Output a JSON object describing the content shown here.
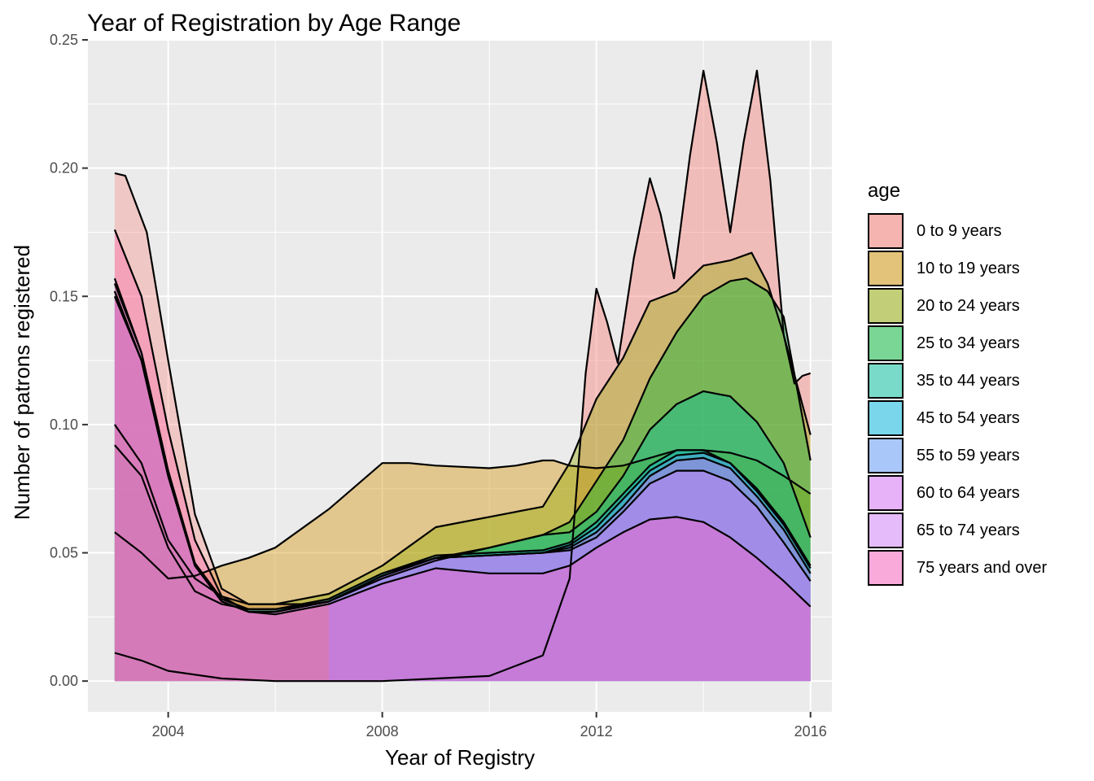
{
  "chart_data": {
    "type": "area",
    "title": "Year of Registration by Age Range",
    "xlabel": "Year of Registry",
    "ylabel": "Number of patrons registered",
    "xlim": [
      2002.5,
      2016.4
    ],
    "ylim": [
      -0.012,
      0.25
    ],
    "x_ticks": [
      2004,
      2008,
      2012,
      2016
    ],
    "x_tick_labels": [
      "2004",
      "2008",
      "2012",
      "2016"
    ],
    "y_ticks": [
      0.0,
      0.05,
      0.1,
      0.15,
      0.2,
      0.25
    ],
    "y_tick_labels": [
      "0.00",
      "0.05",
      "0.10",
      "0.15",
      "0.20",
      "0.25"
    ],
    "grid": true,
    "legend_position": "right",
    "legend_title": "age",
    "series": [
      {
        "name": "0 to 9 years",
        "color": "#F8766D",
        "points": [
          [
            2003,
            0.011
          ],
          [
            2003.5,
            0.008
          ],
          [
            2004,
            0.004
          ],
          [
            2005,
            0.001
          ],
          [
            2006,
            0.0
          ],
          [
            2008,
            0.0
          ],
          [
            2010,
            0.002
          ],
          [
            2011,
            0.01
          ],
          [
            2011.5,
            0.04
          ],
          [
            2011.8,
            0.12
          ],
          [
            2012,
            0.153
          ],
          [
            2012.2,
            0.14
          ],
          [
            2012.4,
            0.124
          ],
          [
            2012.7,
            0.165
          ],
          [
            2013,
            0.196
          ],
          [
            2013.2,
            0.182
          ],
          [
            2013.45,
            0.157
          ],
          [
            2013.75,
            0.205
          ],
          [
            2014,
            0.238
          ],
          [
            2014.25,
            0.21
          ],
          [
            2014.5,
            0.175
          ],
          [
            2014.75,
            0.21
          ],
          [
            2015,
            0.238
          ],
          [
            2015.25,
            0.195
          ],
          [
            2015.5,
            0.135
          ],
          [
            2015.7,
            0.116
          ],
          [
            2015.85,
            0.119
          ],
          [
            2016,
            0.12
          ]
        ]
      },
      {
        "name": "10 to 19 years",
        "color": "#D39200",
        "points": [
          [
            2003,
            0.058
          ],
          [
            2003.5,
            0.05
          ],
          [
            2004,
            0.04
          ],
          [
            2004.5,
            0.041
          ],
          [
            2005,
            0.045
          ],
          [
            2005.5,
            0.048
          ],
          [
            2006,
            0.052
          ],
          [
            2007,
            0.067
          ],
          [
            2008,
            0.085
          ],
          [
            2008.5,
            0.085
          ],
          [
            2009,
            0.084
          ],
          [
            2010,
            0.083
          ],
          [
            2010.5,
            0.084
          ],
          [
            2011,
            0.086
          ],
          [
            2011.2,
            0.086
          ],
          [
            2011.5,
            0.084
          ],
          [
            2012,
            0.083
          ],
          [
            2012.5,
            0.084
          ],
          [
            2013,
            0.087
          ],
          [
            2013.5,
            0.09
          ],
          [
            2014,
            0.09
          ],
          [
            2014.5,
            0.089
          ],
          [
            2015,
            0.086
          ],
          [
            2015.5,
            0.08
          ],
          [
            2016,
            0.073
          ]
        ]
      },
      {
        "name": "20 to 24 years",
        "color": "#93AA00",
        "points": [
          [
            2003,
            0.1
          ],
          [
            2003.5,
            0.085
          ],
          [
            2004,
            0.055
          ],
          [
            2004.5,
            0.04
          ],
          [
            2005,
            0.033
          ],
          [
            2005.5,
            0.03
          ],
          [
            2006,
            0.03
          ],
          [
            2007,
            0.034
          ],
          [
            2008,
            0.045
          ],
          [
            2009,
            0.06
          ],
          [
            2010,
            0.064
          ],
          [
            2011,
            0.068
          ],
          [
            2011.5,
            0.085
          ],
          [
            2012,
            0.11
          ],
          [
            2012.5,
            0.126
          ],
          [
            2013,
            0.148
          ],
          [
            2013.5,
            0.152
          ],
          [
            2014,
            0.162
          ],
          [
            2014.5,
            0.164
          ],
          [
            2014.9,
            0.167
          ],
          [
            2015.2,
            0.155
          ],
          [
            2015.5,
            0.135
          ],
          [
            2016,
            0.096
          ]
        ]
      },
      {
        "name": "25 to 34 years",
        "color": "#00BA38",
        "points": [
          [
            2003,
            0.092
          ],
          [
            2003.5,
            0.08
          ],
          [
            2004,
            0.052
          ],
          [
            2004.5,
            0.035
          ],
          [
            2005,
            0.03
          ],
          [
            2005.5,
            0.028
          ],
          [
            2006,
            0.028
          ],
          [
            2007,
            0.031
          ],
          [
            2008,
            0.04
          ],
          [
            2009,
            0.047
          ],
          [
            2010,
            0.052
          ],
          [
            2011,
            0.057
          ],
          [
            2011.5,
            0.062
          ],
          [
            2012,
            0.078
          ],
          [
            2012.5,
            0.094
          ],
          [
            2013,
            0.118
          ],
          [
            2013.5,
            0.136
          ],
          [
            2014,
            0.15
          ],
          [
            2014.5,
            0.156
          ],
          [
            2014.8,
            0.157
          ],
          [
            2015.2,
            0.152
          ],
          [
            2015.5,
            0.142
          ],
          [
            2016,
            0.086
          ]
        ]
      },
      {
        "name": "35 to 44 years",
        "color": "#00C19F",
        "points": [
          [
            2003,
            0.152
          ],
          [
            2003.5,
            0.125
          ],
          [
            2004,
            0.08
          ],
          [
            2004.5,
            0.045
          ],
          [
            2005,
            0.032
          ],
          [
            2005.5,
            0.028
          ],
          [
            2006,
            0.028
          ],
          [
            2007,
            0.032
          ],
          [
            2008,
            0.042
          ],
          [
            2009,
            0.048
          ],
          [
            2010,
            0.052
          ],
          [
            2011,
            0.057
          ],
          [
            2011.5,
            0.058
          ],
          [
            2012,
            0.066
          ],
          [
            2012.5,
            0.08
          ],
          [
            2013,
            0.098
          ],
          [
            2013.5,
            0.108
          ],
          [
            2014,
            0.113
          ],
          [
            2014.5,
            0.111
          ],
          [
            2015,
            0.101
          ],
          [
            2015.5,
            0.085
          ],
          [
            2016,
            0.056
          ]
        ]
      },
      {
        "name": "45 to 54 years",
        "color": "#00B9E3",
        "points": [
          [
            2003,
            0.155
          ],
          [
            2003.5,
            0.128
          ],
          [
            2004,
            0.082
          ],
          [
            2004.5,
            0.046
          ],
          [
            2005,
            0.032
          ],
          [
            2005.5,
            0.028
          ],
          [
            2006,
            0.028
          ],
          [
            2007,
            0.032
          ],
          [
            2008,
            0.042
          ],
          [
            2009,
            0.049
          ],
          [
            2010,
            0.05
          ],
          [
            2011,
            0.051
          ],
          [
            2011.5,
            0.054
          ],
          [
            2012,
            0.062
          ],
          [
            2012.5,
            0.073
          ],
          [
            2013,
            0.084
          ],
          [
            2013.5,
            0.09
          ],
          [
            2014,
            0.09
          ],
          [
            2014.5,
            0.085
          ],
          [
            2015,
            0.075
          ],
          [
            2015.5,
            0.062
          ],
          [
            2016,
            0.045
          ]
        ]
      },
      {
        "name": "55 to 59 years",
        "color": "#619CFF",
        "points": [
          [
            2003,
            0.15
          ],
          [
            2003.5,
            0.125
          ],
          [
            2004,
            0.08
          ],
          [
            2004.5,
            0.045
          ],
          [
            2005,
            0.031
          ],
          [
            2005.5,
            0.027
          ],
          [
            2006,
            0.027
          ],
          [
            2007,
            0.031
          ],
          [
            2008,
            0.041
          ],
          [
            2009,
            0.048
          ],
          [
            2010,
            0.049
          ],
          [
            2011,
            0.05
          ],
          [
            2011.5,
            0.053
          ],
          [
            2012,
            0.06
          ],
          [
            2012.5,
            0.071
          ],
          [
            2013,
            0.082
          ],
          [
            2013.5,
            0.088
          ],
          [
            2014,
            0.089
          ],
          [
            2014.5,
            0.085
          ],
          [
            2015,
            0.074
          ],
          [
            2015.5,
            0.061
          ],
          [
            2016,
            0.044
          ]
        ]
      },
      {
        "name": "60 to 64 years",
        "color": "#DB72FB",
        "points": [
          [
            2003,
            0.152
          ],
          [
            2003.5,
            0.125
          ],
          [
            2004,
            0.08
          ],
          [
            2004.5,
            0.045
          ],
          [
            2005,
            0.031
          ],
          [
            2005.5,
            0.027
          ],
          [
            2006,
            0.027
          ],
          [
            2007,
            0.031
          ],
          [
            2008,
            0.041
          ],
          [
            2009,
            0.048
          ],
          [
            2010,
            0.049
          ],
          [
            2011,
            0.05
          ],
          [
            2011.5,
            0.052
          ],
          [
            2012,
            0.058
          ],
          [
            2012.5,
            0.068
          ],
          [
            2013,
            0.08
          ],
          [
            2013.5,
            0.086
          ],
          [
            2014,
            0.087
          ],
          [
            2014.5,
            0.083
          ],
          [
            2015,
            0.072
          ],
          [
            2015.5,
            0.059
          ],
          [
            2016,
            0.042
          ]
        ]
      },
      {
        "name": "65 to 74 years",
        "color": "#D883FF",
        "points": [
          [
            2003,
            0.157
          ],
          [
            2003.5,
            0.128
          ],
          [
            2004,
            0.082
          ],
          [
            2004.5,
            0.045
          ],
          [
            2005,
            0.031
          ],
          [
            2005.5,
            0.027
          ],
          [
            2006,
            0.027
          ],
          [
            2007,
            0.031
          ],
          [
            2008,
            0.041
          ],
          [
            2009,
            0.048
          ],
          [
            2010,
            0.049
          ],
          [
            2011,
            0.05
          ],
          [
            2011.5,
            0.051
          ],
          [
            2012,
            0.056
          ],
          [
            2012.5,
            0.066
          ],
          [
            2013,
            0.077
          ],
          [
            2013.5,
            0.082
          ],
          [
            2014,
            0.082
          ],
          [
            2014.5,
            0.078
          ],
          [
            2015,
            0.068
          ],
          [
            2015.5,
            0.054
          ],
          [
            2016,
            0.039
          ]
        ]
      },
      {
        "name": "75 years and over",
        "color": "#FF61C3",
        "points": [
          [
            2003,
            0.176
          ],
          [
            2003.5,
            0.15
          ],
          [
            2004,
            0.098
          ],
          [
            2004.5,
            0.055
          ],
          [
            2005,
            0.033
          ],
          [
            2005.5,
            0.027
          ],
          [
            2006,
            0.026
          ],
          [
            2007,
            0.03
          ],
          [
            2008,
            0.038
          ],
          [
            2009,
            0.044
          ],
          [
            2010,
            0.042
          ],
          [
            2011,
            0.042
          ],
          [
            2011.5,
            0.045
          ],
          [
            2012,
            0.052
          ],
          [
            2012.5,
            0.058
          ],
          [
            2013,
            0.063
          ],
          [
            2013.5,
            0.064
          ],
          [
            2014,
            0.062
          ],
          [
            2014.5,
            0.056
          ],
          [
            2015,
            0.048
          ],
          [
            2015.5,
            0.039
          ],
          [
            2016,
            0.029
          ]
        ]
      }
    ],
    "extra_curves": [
      {
        "color": "#F8766D",
        "points": [
          [
            2003,
            0.198
          ],
          [
            2003.2,
            0.197
          ],
          [
            2003.6,
            0.175
          ],
          [
            2004,
            0.125
          ],
          [
            2004.5,
            0.065
          ],
          [
            2005,
            0.036
          ],
          [
            2005.5,
            0.03
          ],
          [
            2006,
            0.03
          ],
          [
            2006.5,
            0.03
          ],
          [
            2007,
            0.032
          ]
        ]
      }
    ]
  }
}
